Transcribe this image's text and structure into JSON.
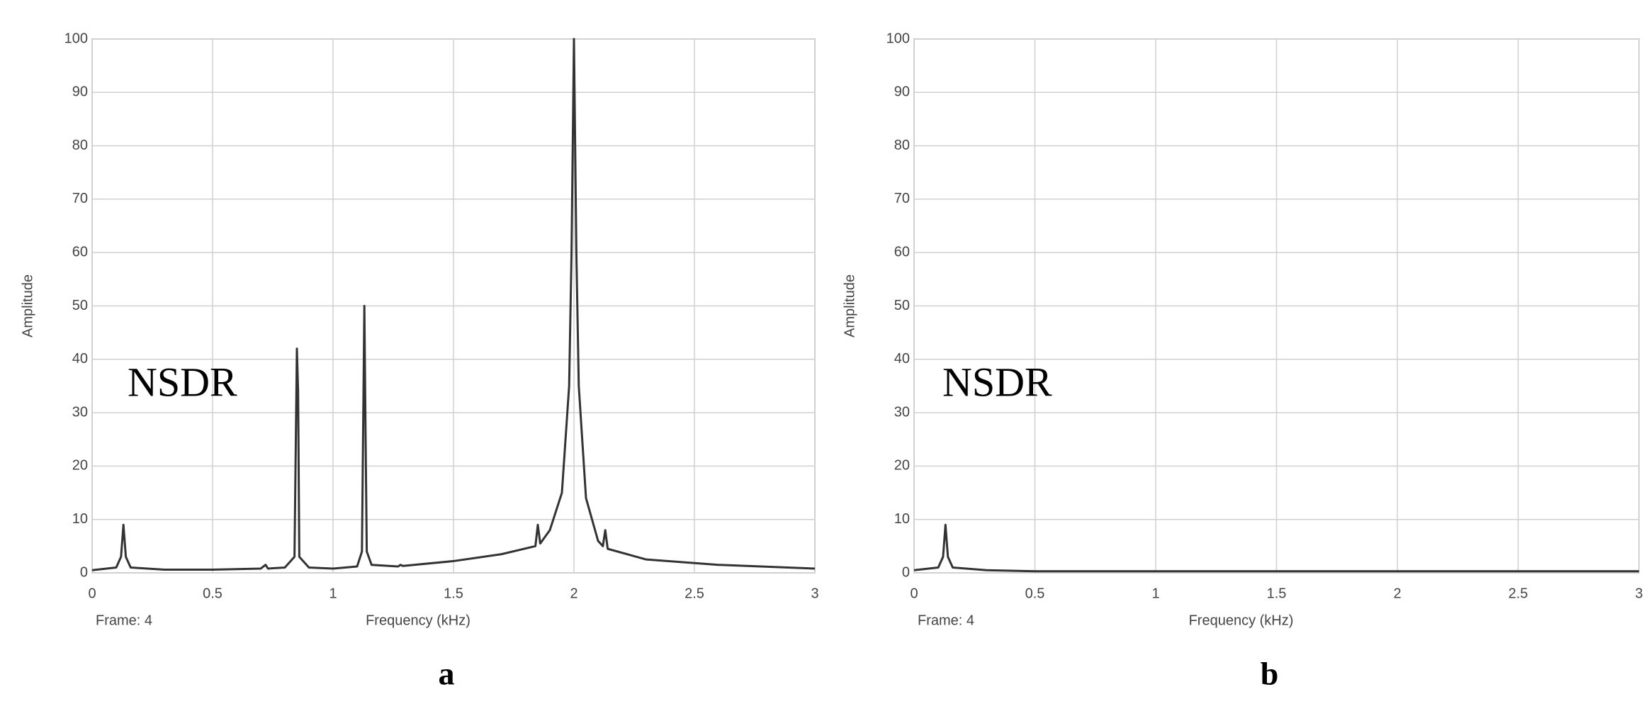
{
  "chart_data": [
    {
      "type": "line",
      "xlabel": "Frequency (kHz)",
      "ylabel": "Amplitude",
      "annotation": "NSDR",
      "footer": "Frame: 4",
      "panel_label": "a",
      "x": [
        0,
        0.1,
        0.12,
        0.13,
        0.14,
        0.16,
        0.3,
        0.5,
        0.7,
        0.72,
        0.73,
        0.8,
        0.84,
        0.85,
        0.855,
        0.86,
        0.9,
        1.0,
        1.1,
        1.12,
        1.13,
        1.135,
        1.14,
        1.16,
        1.27,
        1.28,
        1.29,
        1.5,
        1.7,
        1.84,
        1.85,
        1.86,
        1.9,
        1.95,
        1.98,
        1.99,
        2.0,
        2.01,
        2.02,
        2.05,
        2.1,
        2.12,
        2.13,
        2.14,
        2.3,
        2.6,
        3
      ],
      "values": [
        0.5,
        1,
        3,
        9,
        3,
        1,
        0.6,
        0.6,
        0.8,
        1.5,
        0.8,
        1,
        3,
        42,
        34,
        3,
        1,
        0.8,
        1.2,
        4,
        50,
        26,
        4,
        1.5,
        1.2,
        1.5,
        1.3,
        2.2,
        3.5,
        5,
        9,
        5.5,
        8,
        15,
        35,
        60,
        100,
        60,
        35,
        14,
        6,
        5,
        8,
        4.5,
        2.5,
        1.5,
        0.8
      ],
      "color": "#333333",
      "xlim": [
        0,
        3
      ],
      "ylim": [
        0,
        100
      ],
      "xticks": [
        0,
        0.5,
        1,
        1.5,
        2,
        2.5,
        3
      ],
      "yticks": [
        0,
        10,
        20,
        30,
        40,
        50,
        60,
        70,
        80,
        90,
        100
      ],
      "grid": true
    },
    {
      "type": "line",
      "xlabel": "Frequency (kHz)",
      "ylabel": "Amplitude",
      "annotation": "NSDR",
      "footer": "Frame: 4",
      "panel_label": "b",
      "x": [
        0,
        0.1,
        0.12,
        0.13,
        0.14,
        0.16,
        0.3,
        0.5,
        1,
        3
      ],
      "values": [
        0.5,
        1,
        3,
        9,
        3,
        1,
        0.5,
        0.3,
        0.3,
        0.3
      ],
      "color": "#333333",
      "xlim": [
        0,
        3
      ],
      "ylim": [
        0,
        100
      ],
      "xticks": [
        0,
        0.5,
        1,
        1.5,
        2,
        2.5,
        3
      ],
      "yticks": [
        0,
        10,
        20,
        30,
        40,
        50,
        60,
        70,
        80,
        90,
        100
      ],
      "grid": true
    }
  ]
}
